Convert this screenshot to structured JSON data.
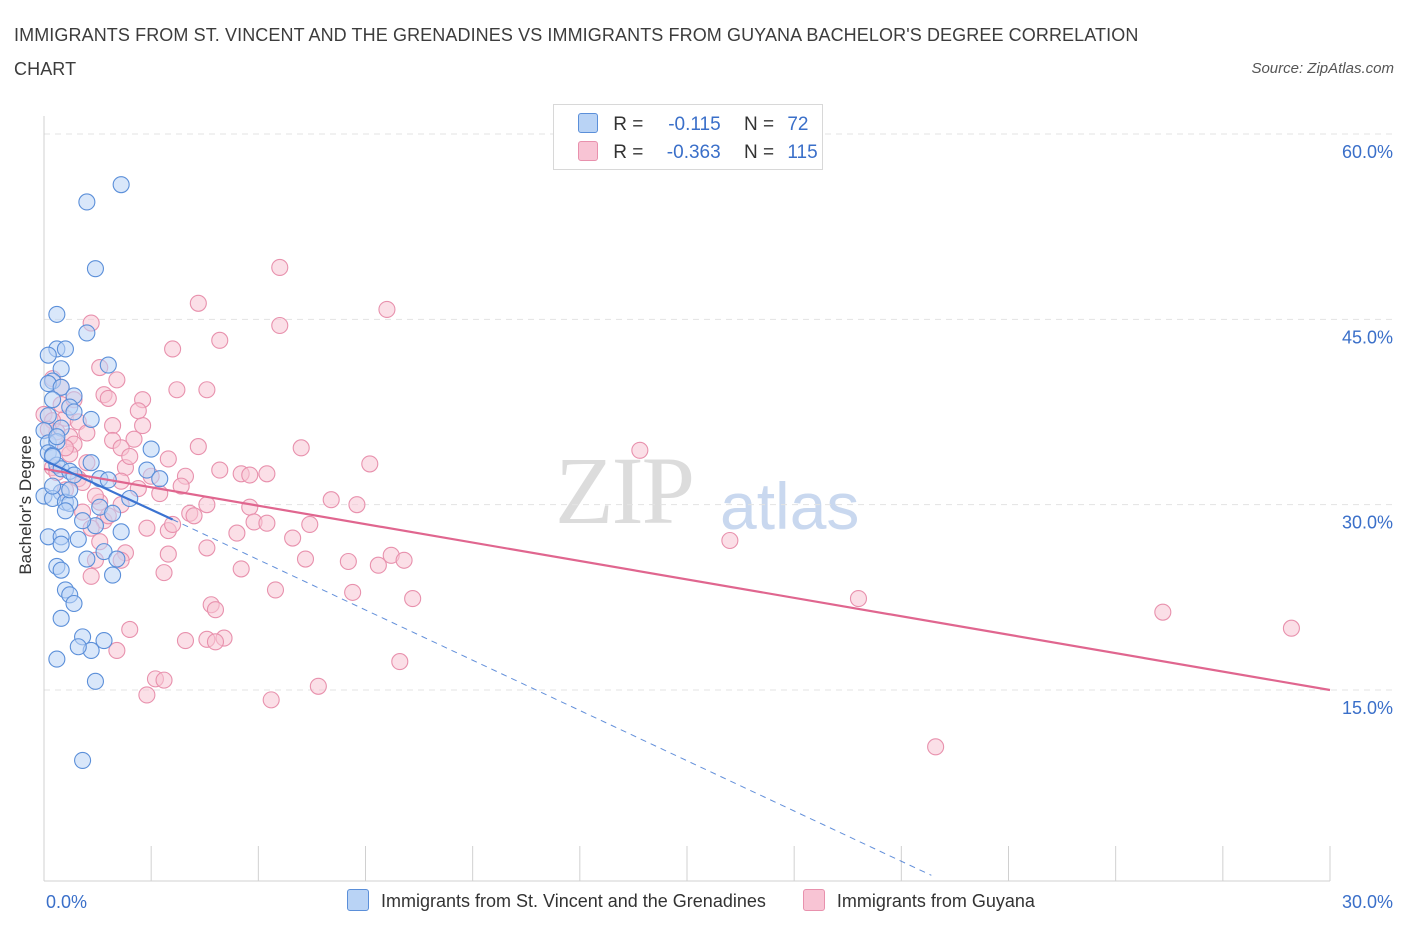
{
  "title": "IMMIGRANTS FROM ST. VINCENT AND THE GRENADINES VS IMMIGRANTS FROM GUYANA BACHELOR'S DEGREE CORRELATION CHART",
  "source": "Source: ZipAtlas.com",
  "watermark": {
    "zip": "ZIP",
    "atlas": "atlas"
  },
  "legend": {
    "r_label": "R =",
    "n_label": "N =",
    "series1": {
      "r": "-0.115",
      "n": "72"
    },
    "series2": {
      "r": "-0.363",
      "n": "115"
    }
  },
  "colors": {
    "series1_fill": "#b9d3f5",
    "series1_stroke": "#5b8fd9",
    "series1_line": "#3b73d1",
    "series2_fill": "#f8c4d4",
    "series2_stroke": "#e891ad",
    "series2_line": "#e0668f",
    "tick_text": "#3a6fc9"
  },
  "chart_data": {
    "type": "scatter",
    "title": "IMMIGRANTS FROM ST. VINCENT AND THE GRENADINES VS IMMIGRANTS FROM GUYANA BACHELOR'S DEGREE CORRELATION CHART",
    "xlabel": "",
    "ylabel": "Bachelor's Degree",
    "xlim": [
      0,
      30
    ],
    "ylim": [
      0,
      62
    ],
    "x_tick_labels": [
      "0.0%",
      "30.0%"
    ],
    "y_tick_labels": [
      "15.0%",
      "30.0%",
      "45.0%",
      "60.0%"
    ],
    "y_ticks": [
      15,
      30,
      45,
      60
    ],
    "grid": "horizontal dashed",
    "legend_position": "top-center",
    "series": [
      {
        "name": "Immigrants from St. Vincent and the Grenadines",
        "color": "#5b8fd9",
        "trend": {
          "x": [
            0.0,
            3.0
          ],
          "y": [
            33.6,
            28.8
          ],
          "dashed_extension_to": [
            20.7,
            0.0
          ]
        },
        "points": [
          [
            1.8,
            55.9
          ],
          [
            1.0,
            54.5
          ],
          [
            1.2,
            49.1
          ],
          [
            0.3,
            45.4
          ],
          [
            1.0,
            43.9
          ],
          [
            0.3,
            42.6
          ],
          [
            0.5,
            42.6
          ],
          [
            0.1,
            42.1
          ],
          [
            0.4,
            41.0
          ],
          [
            1.5,
            41.3
          ],
          [
            0.2,
            40.0
          ],
          [
            0.1,
            39.8
          ],
          [
            0.4,
            39.5
          ],
          [
            0.7,
            38.8
          ],
          [
            0.2,
            38.5
          ],
          [
            0.6,
            37.9
          ],
          [
            0.7,
            37.5
          ],
          [
            0.1,
            37.2
          ],
          [
            1.1,
            36.9
          ],
          [
            0.4,
            36.2
          ],
          [
            0.0,
            36.0
          ],
          [
            0.1,
            35.0
          ],
          [
            0.3,
            35.1
          ],
          [
            2.5,
            34.5
          ],
          [
            0.1,
            34.2
          ],
          [
            0.2,
            34.0
          ],
          [
            0.3,
            33.2
          ],
          [
            0.4,
            32.9
          ],
          [
            0.6,
            32.7
          ],
          [
            2.4,
            32.8
          ],
          [
            1.3,
            32.1
          ],
          [
            2.7,
            32.1
          ],
          [
            1.5,
            32.0
          ],
          [
            0.4,
            31.0
          ],
          [
            0.0,
            30.7
          ],
          [
            0.2,
            30.5
          ],
          [
            0.5,
            30.2
          ],
          [
            0.6,
            30.1
          ],
          [
            1.3,
            29.8
          ],
          [
            1.6,
            29.3
          ],
          [
            1.2,
            28.3
          ],
          [
            0.1,
            27.4
          ],
          [
            0.4,
            27.4
          ],
          [
            1.8,
            27.8
          ],
          [
            1.4,
            26.2
          ],
          [
            1.7,
            25.6
          ],
          [
            1.0,
            25.6
          ],
          [
            0.3,
            25.0
          ],
          [
            0.4,
            24.7
          ],
          [
            1.6,
            24.3
          ],
          [
            0.5,
            23.1
          ],
          [
            0.6,
            22.7
          ],
          [
            0.7,
            22.0
          ],
          [
            0.4,
            20.8
          ],
          [
            0.9,
            19.3
          ],
          [
            1.4,
            19.0
          ],
          [
            1.1,
            18.2
          ],
          [
            0.8,
            18.5
          ],
          [
            0.3,
            17.5
          ],
          [
            1.2,
            15.7
          ],
          [
            0.9,
            9.3
          ],
          [
            0.2,
            33.9
          ],
          [
            0.6,
            31.2
          ],
          [
            0.9,
            28.7
          ],
          [
            0.5,
            29.5
          ],
          [
            0.3,
            35.5
          ],
          [
            1.1,
            33.4
          ],
          [
            0.7,
            32.4
          ],
          [
            0.2,
            31.5
          ],
          [
            2.0,
            30.5
          ],
          [
            0.8,
            27.2
          ],
          [
            0.4,
            26.8
          ]
        ]
      },
      {
        "name": "Immigrants from Guyana",
        "color": "#e891ad",
        "trend": {
          "x": [
            0.0,
            30.0
          ],
          "y": [
            32.9,
            15.0
          ]
        },
        "points": [
          [
            5.5,
            49.2
          ],
          [
            8.0,
            45.8
          ],
          [
            3.6,
            46.3
          ],
          [
            5.5,
            44.5
          ],
          [
            1.1,
            44.7
          ],
          [
            4.1,
            43.3
          ],
          [
            3.0,
            42.6
          ],
          [
            1.3,
            41.1
          ],
          [
            0.2,
            40.2
          ],
          [
            1.7,
            40.1
          ],
          [
            0.4,
            39.5
          ],
          [
            3.1,
            39.3
          ],
          [
            3.8,
            39.3
          ],
          [
            1.4,
            38.9
          ],
          [
            1.5,
            38.6
          ],
          [
            2.3,
            38.5
          ],
          [
            0.0,
            37.3
          ],
          [
            0.5,
            37.0
          ],
          [
            0.2,
            36.8
          ],
          [
            0.8,
            36.7
          ],
          [
            1.6,
            36.4
          ],
          [
            2.3,
            36.4
          ],
          [
            0.3,
            35.9
          ],
          [
            0.6,
            35.5
          ],
          [
            1.6,
            35.2
          ],
          [
            2.1,
            35.3
          ],
          [
            0.7,
            34.9
          ],
          [
            1.8,
            34.6
          ],
          [
            3.6,
            34.7
          ],
          [
            6.0,
            34.6
          ],
          [
            13.9,
            34.4
          ],
          [
            2.9,
            33.7
          ],
          [
            1.0,
            33.4
          ],
          [
            0.2,
            33.0
          ],
          [
            7.6,
            33.3
          ],
          [
            1.9,
            33.0
          ],
          [
            4.1,
            32.8
          ],
          [
            4.6,
            32.5
          ],
          [
            4.8,
            32.4
          ],
          [
            5.2,
            32.5
          ],
          [
            2.5,
            32.3
          ],
          [
            3.3,
            32.3
          ],
          [
            0.8,
            32.1
          ],
          [
            3.2,
            31.5
          ],
          [
            2.2,
            31.3
          ],
          [
            0.5,
            31.2
          ],
          [
            6.7,
            30.4
          ],
          [
            1.3,
            30.2
          ],
          [
            1.8,
            30.0
          ],
          [
            3.8,
            30.0
          ],
          [
            7.3,
            30.0
          ],
          [
            4.8,
            29.8
          ],
          [
            0.9,
            29.4
          ],
          [
            3.4,
            29.3
          ],
          [
            3.5,
            29.1
          ],
          [
            1.4,
            28.7
          ],
          [
            4.9,
            28.6
          ],
          [
            5.2,
            28.5
          ],
          [
            6.2,
            28.4
          ],
          [
            1.1,
            28.1
          ],
          [
            2.4,
            28.1
          ],
          [
            2.9,
            27.9
          ],
          [
            4.5,
            27.7
          ],
          [
            5.8,
            27.3
          ],
          [
            16.0,
            27.1
          ],
          [
            3.8,
            26.5
          ],
          [
            2.9,
            26.0
          ],
          [
            1.9,
            26.1
          ],
          [
            8.1,
            25.9
          ],
          [
            6.1,
            25.6
          ],
          [
            7.1,
            25.4
          ],
          [
            8.4,
            25.5
          ],
          [
            1.2,
            25.5
          ],
          [
            1.8,
            25.5
          ],
          [
            7.8,
            25.1
          ],
          [
            4.6,
            24.8
          ],
          [
            2.8,
            24.5
          ],
          [
            1.1,
            24.2
          ],
          [
            5.4,
            23.1
          ],
          [
            7.2,
            22.9
          ],
          [
            19.0,
            22.4
          ],
          [
            8.6,
            22.4
          ],
          [
            3.9,
            21.9
          ],
          [
            4.0,
            21.5
          ],
          [
            26.1,
            21.3
          ],
          [
            29.1,
            20.0
          ],
          [
            2.0,
            19.9
          ],
          [
            4.2,
            19.2
          ],
          [
            3.3,
            19.0
          ],
          [
            3.8,
            19.1
          ],
          [
            4.0,
            18.9
          ],
          [
            1.7,
            18.2
          ],
          [
            8.3,
            17.3
          ],
          [
            2.6,
            15.9
          ],
          [
            2.8,
            15.8
          ],
          [
            6.4,
            15.3
          ],
          [
            2.4,
            14.6
          ],
          [
            5.3,
            14.2
          ],
          [
            20.8,
            10.4
          ],
          [
            0.4,
            38.1
          ],
          [
            0.1,
            36.1
          ],
          [
            0.6,
            34.1
          ],
          [
            0.9,
            31.8
          ],
          [
            1.2,
            30.7
          ],
          [
            2.0,
            33.9
          ],
          [
            2.7,
            30.9
          ],
          [
            1.5,
            29.1
          ],
          [
            0.3,
            32.6
          ],
          [
            3.0,
            28.4
          ],
          [
            1.0,
            35.8
          ],
          [
            0.7,
            38.5
          ],
          [
            2.2,
            37.6
          ],
          [
            1.8,
            31.9
          ],
          [
            0.5,
            34.6
          ],
          [
            1.3,
            27.0
          ]
        ]
      }
    ]
  }
}
